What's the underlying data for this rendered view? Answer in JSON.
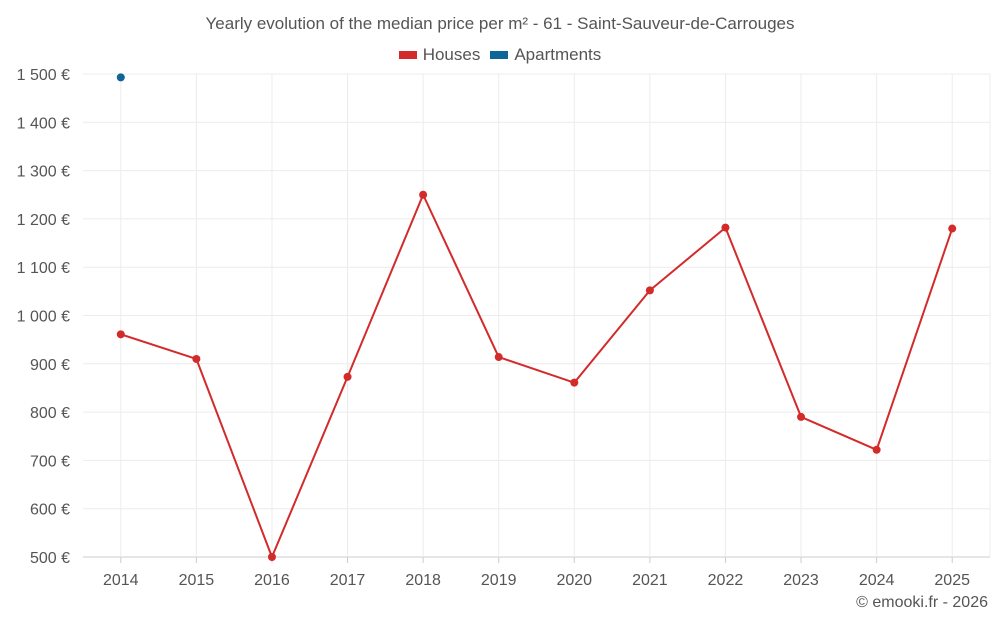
{
  "chart_data": {
    "type": "line",
    "title": "Yearly evolution of the median price per m² - 61 - Saint-Sauveur-de-Carrouges",
    "categories": [
      "2014",
      "2015",
      "2016",
      "2017",
      "2018",
      "2019",
      "2020",
      "2021",
      "2022",
      "2023",
      "2024",
      "2025"
    ],
    "series": [
      {
        "name": "Houses",
        "color": "#d32a2a",
        "values": [
          961,
          910,
          500,
          873,
          1250,
          914,
          861,
          1052,
          1182,
          790,
          722,
          1180
        ]
      },
      {
        "name": "Apartments",
        "color": "#0e6596",
        "values": [
          1493,
          null,
          null,
          null,
          null,
          null,
          null,
          null,
          null,
          null,
          null,
          null
        ]
      }
    ],
    "ylim": [
      500,
      1500
    ],
    "yticks": [
      500,
      600,
      700,
      800,
      900,
      1000,
      1100,
      1200,
      1300,
      1400,
      1500
    ],
    "ytick_labels": [
      "500 €",
      "600 €",
      "700 €",
      "800 €",
      "900 €",
      "1 000 €",
      "1 100 €",
      "1 200 €",
      "1 300 €",
      "1 400 €",
      "1 500 €"
    ],
    "xlabel": "",
    "ylabel": "",
    "grid": true,
    "legend_position": "top-center"
  },
  "credit": "© emooki.fr - 2026"
}
